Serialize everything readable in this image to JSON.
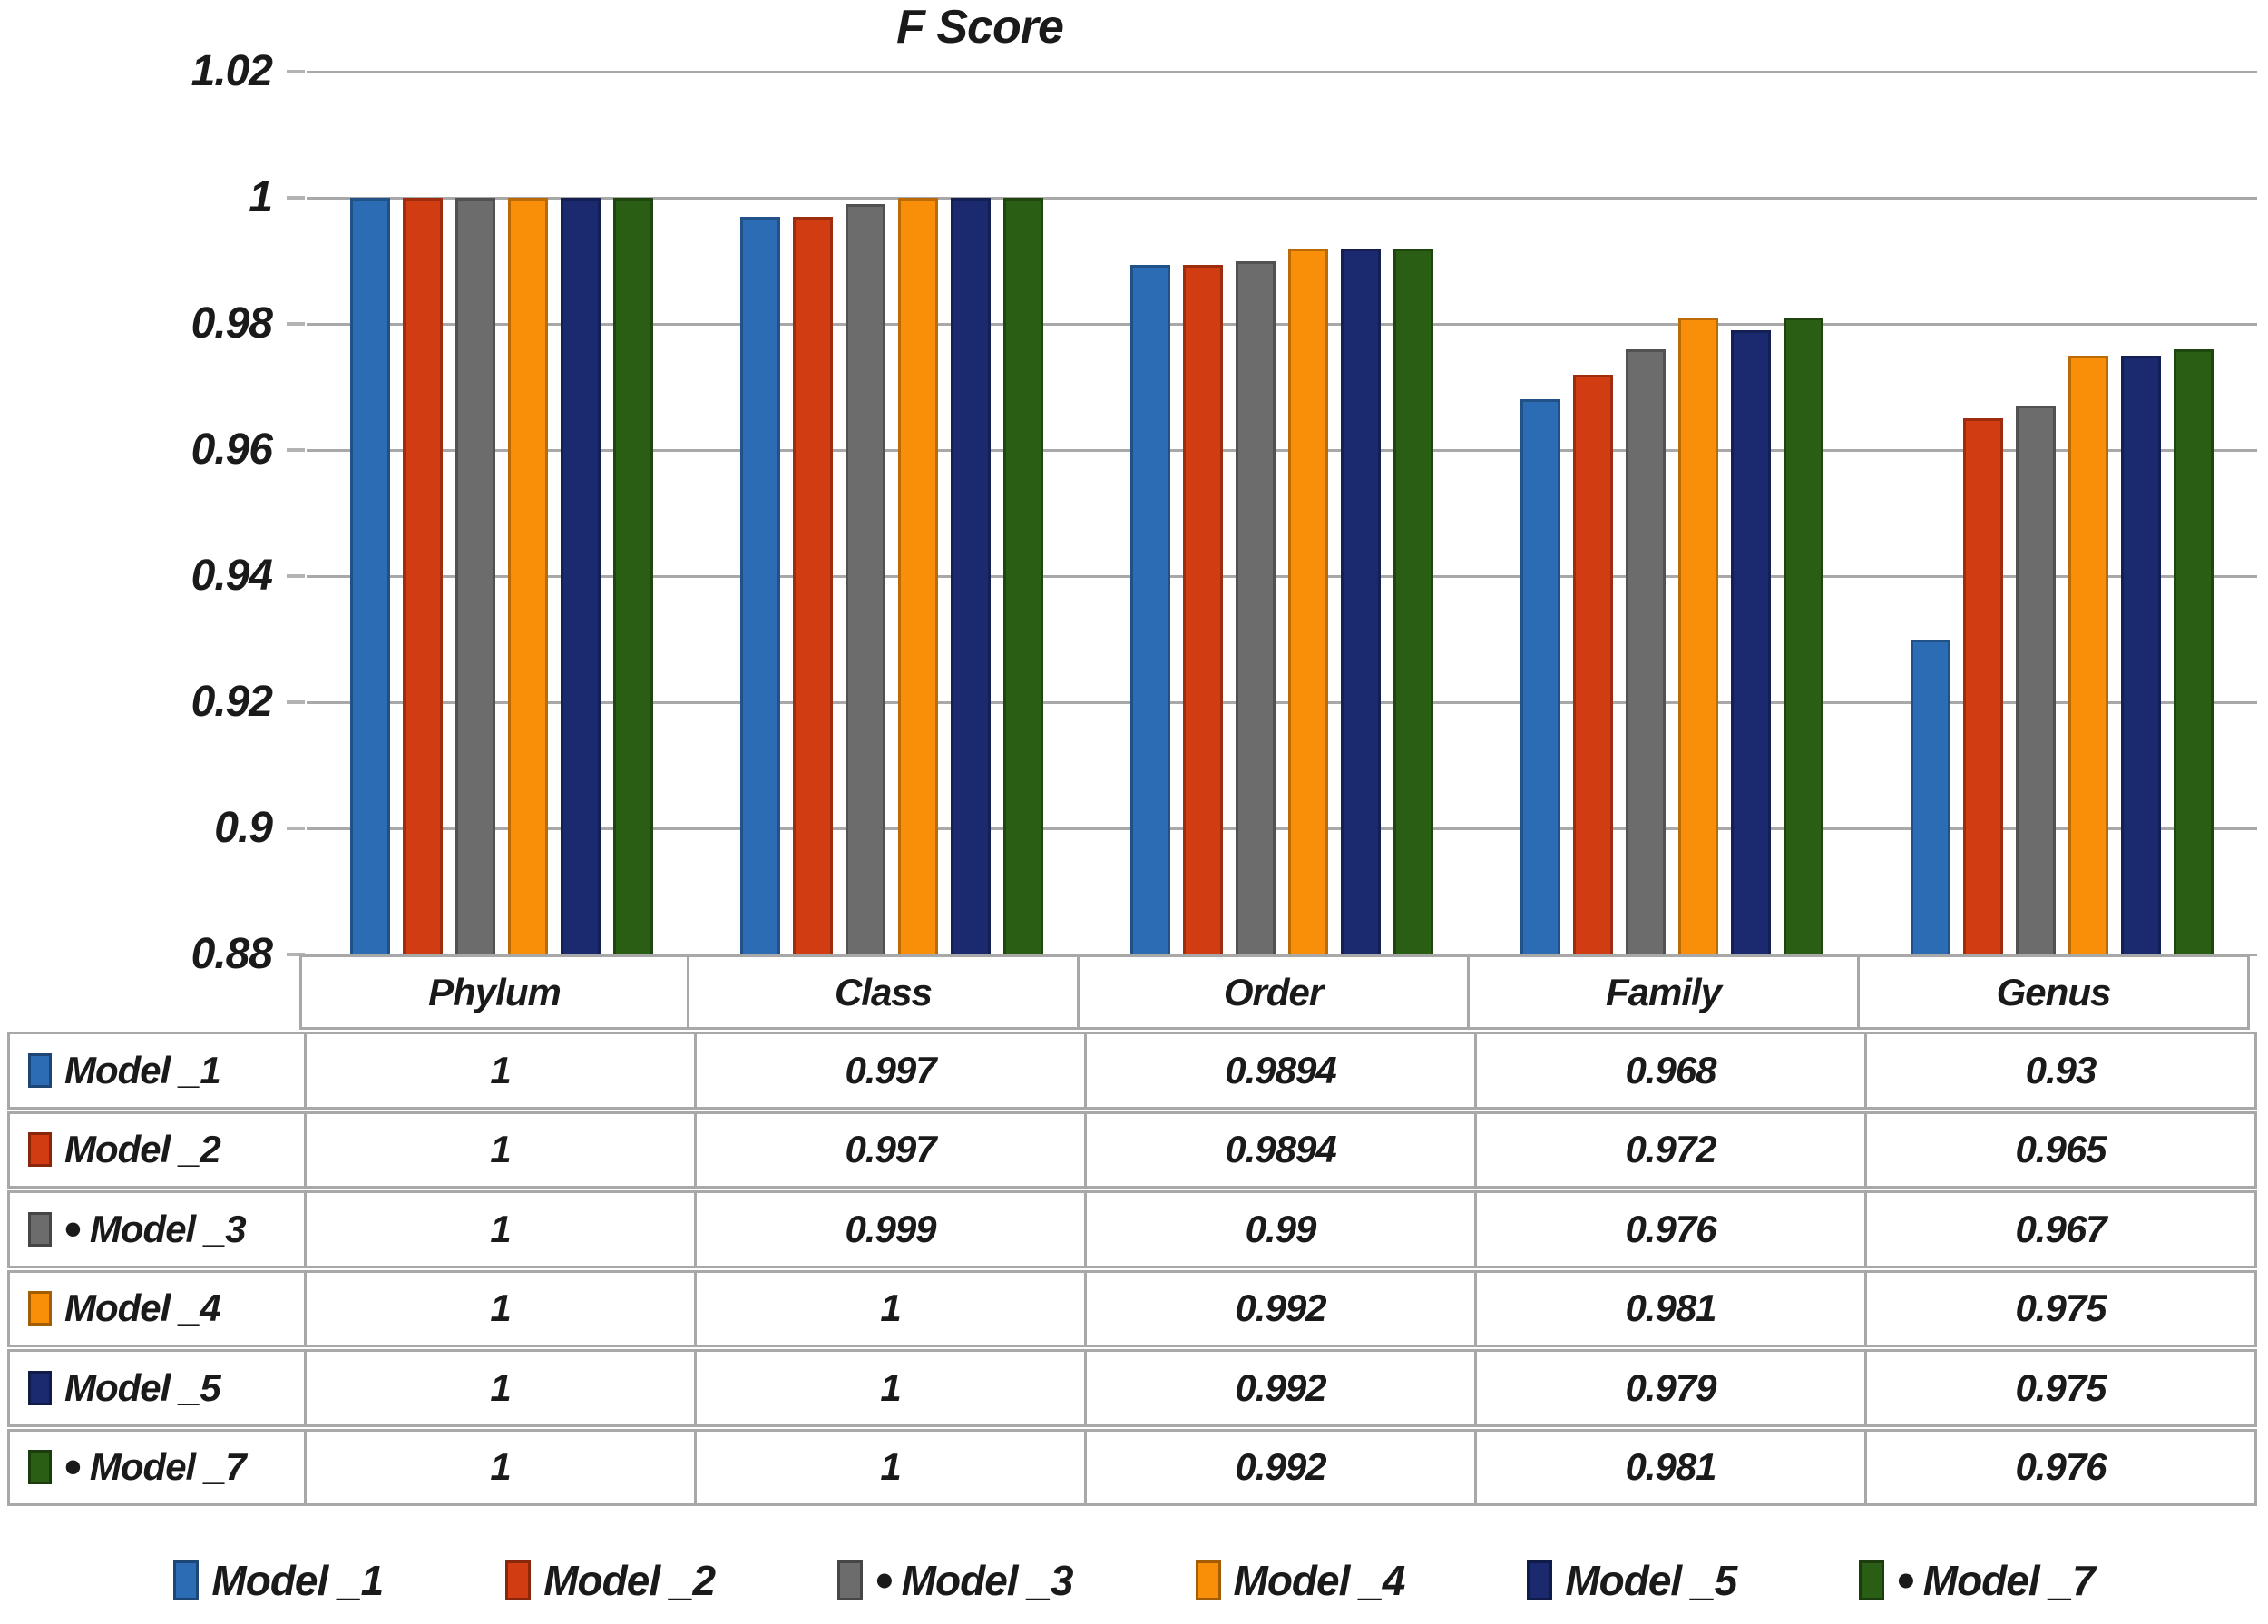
{
  "chart_data": {
    "type": "bar",
    "title": "F Score",
    "categories": [
      "Phylum",
      "Class",
      "Order",
      "Family",
      "Genus"
    ],
    "series": [
      {
        "name": "Model _1",
        "color": "#2B6CB5",
        "bullet": false,
        "values": [
          1,
          0.997,
          0.9894,
          0.968,
          0.93
        ]
      },
      {
        "name": "Model _2",
        "color": "#D23C12",
        "bullet": false,
        "values": [
          1,
          0.997,
          0.9894,
          0.972,
          0.965
        ]
      },
      {
        "name": "Model _3",
        "color": "#6C6C6C",
        "bullet": true,
        "values": [
          1,
          0.999,
          0.99,
          0.976,
          0.967
        ]
      },
      {
        "name": "Model _4",
        "color": "#F98F09",
        "bullet": false,
        "values": [
          1,
          1,
          0.992,
          0.981,
          0.975
        ]
      },
      {
        "name": "Model _5",
        "color": "#1B2A6F",
        "bullet": false,
        "values": [
          1,
          1,
          0.992,
          0.979,
          0.975
        ]
      },
      {
        "name": "Model _7",
        "color": "#2A5E14",
        "bullet": true,
        "values": [
          1,
          1,
          0.992,
          0.981,
          0.976
        ]
      }
    ],
    "ylim": [
      0.88,
      1.02
    ],
    "yticks": [
      "1.02",
      "1",
      "0.98",
      "0.96",
      "0.94",
      "0.92",
      "0.9",
      "0.88"
    ],
    "grid": true,
    "legend_position": "bottom",
    "data_table_shown": true,
    "bullet_char": "•"
  }
}
